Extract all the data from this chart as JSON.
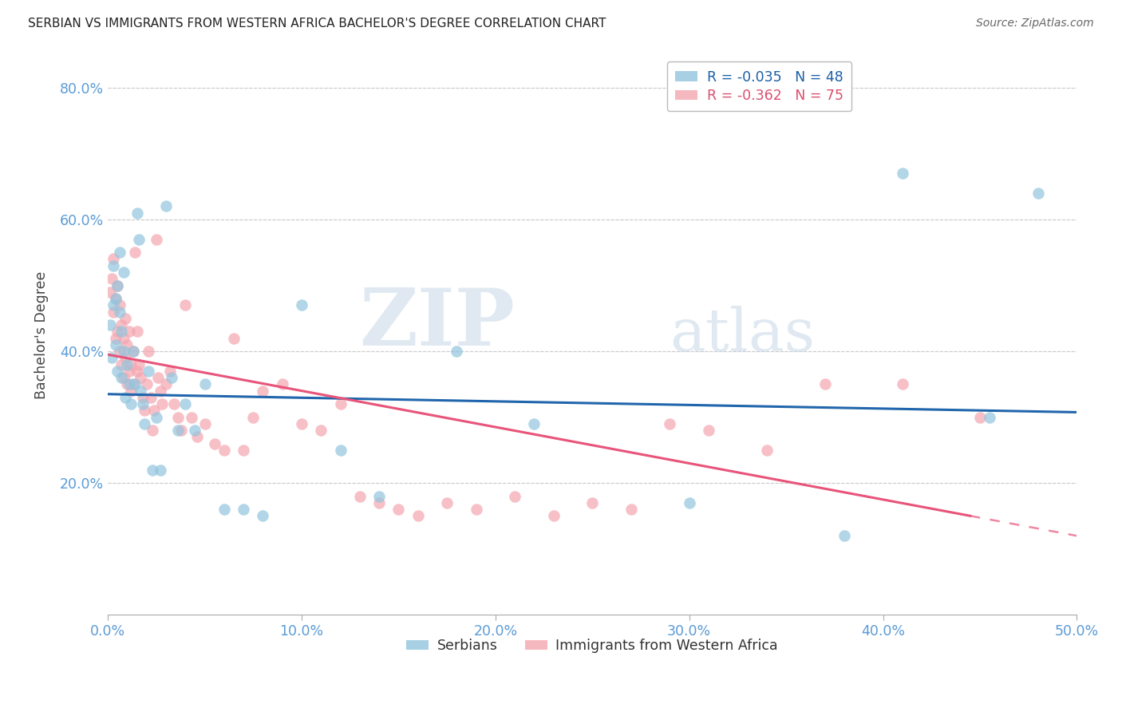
{
  "title": "SERBIAN VS IMMIGRANTS FROM WESTERN AFRICA BACHELOR'S DEGREE CORRELATION CHART",
  "source": "Source: ZipAtlas.com",
  "tick_color": "#5b9bd5",
  "ylabel": "Bachelor's Degree",
  "xlim": [
    0.0,
    0.5
  ],
  "ylim": [
    0.0,
    0.85
  ],
  "xticks": [
    0.0,
    0.1,
    0.2,
    0.3,
    0.4,
    0.5
  ],
  "yticks": [
    0.2,
    0.4,
    0.6,
    0.8
  ],
  "legend_r1": "R = -0.035",
  "legend_n1": "N = 48",
  "legend_r2": "R = -0.362",
  "legend_n2": "N = 75",
  "blue_color": "#92c5de",
  "pink_color": "#f4a6b0",
  "trendline_blue": "#2166ac",
  "trendline_pink": "#e8547a",
  "watermark_zip": "ZIP",
  "watermark_atlas": "atlas",
  "serbian_x": [
    0.001,
    0.002,
    0.003,
    0.003,
    0.004,
    0.004,
    0.005,
    0.005,
    0.006,
    0.006,
    0.007,
    0.007,
    0.008,
    0.008,
    0.009,
    0.01,
    0.011,
    0.012,
    0.013,
    0.014,
    0.015,
    0.016,
    0.017,
    0.018,
    0.019,
    0.021,
    0.023,
    0.025,
    0.027,
    0.03,
    0.033,
    0.036,
    0.04,
    0.045,
    0.05,
    0.06,
    0.07,
    0.08,
    0.1,
    0.12,
    0.14,
    0.18,
    0.22,
    0.3,
    0.38,
    0.41,
    0.455,
    0.48
  ],
  "serbian_y": [
    0.44,
    0.39,
    0.47,
    0.53,
    0.41,
    0.48,
    0.5,
    0.37,
    0.46,
    0.55,
    0.43,
    0.36,
    0.4,
    0.52,
    0.33,
    0.38,
    0.35,
    0.32,
    0.4,
    0.35,
    0.61,
    0.57,
    0.34,
    0.32,
    0.29,
    0.37,
    0.22,
    0.3,
    0.22,
    0.62,
    0.36,
    0.28,
    0.32,
    0.28,
    0.35,
    0.16,
    0.16,
    0.15,
    0.47,
    0.25,
    0.18,
    0.4,
    0.29,
    0.17,
    0.12,
    0.67,
    0.3,
    0.64
  ],
  "western_africa_x": [
    0.001,
    0.002,
    0.003,
    0.003,
    0.004,
    0.004,
    0.005,
    0.005,
    0.006,
    0.006,
    0.007,
    0.007,
    0.008,
    0.008,
    0.009,
    0.009,
    0.01,
    0.01,
    0.011,
    0.011,
    0.012,
    0.012,
    0.013,
    0.013,
    0.014,
    0.015,
    0.015,
    0.016,
    0.017,
    0.018,
    0.019,
    0.02,
    0.021,
    0.022,
    0.023,
    0.024,
    0.025,
    0.026,
    0.027,
    0.028,
    0.03,
    0.032,
    0.034,
    0.036,
    0.038,
    0.04,
    0.043,
    0.046,
    0.05,
    0.055,
    0.06,
    0.065,
    0.07,
    0.075,
    0.08,
    0.09,
    0.1,
    0.11,
    0.12,
    0.13,
    0.14,
    0.15,
    0.16,
    0.175,
    0.19,
    0.21,
    0.23,
    0.25,
    0.27,
    0.29,
    0.31,
    0.34,
    0.37,
    0.41,
    0.45
  ],
  "western_africa_y": [
    0.49,
    0.51,
    0.46,
    0.54,
    0.42,
    0.48,
    0.43,
    0.5,
    0.4,
    0.47,
    0.44,
    0.38,
    0.42,
    0.36,
    0.45,
    0.39,
    0.41,
    0.35,
    0.37,
    0.43,
    0.34,
    0.38,
    0.4,
    0.35,
    0.55,
    0.37,
    0.43,
    0.38,
    0.36,
    0.33,
    0.31,
    0.35,
    0.4,
    0.33,
    0.28,
    0.31,
    0.57,
    0.36,
    0.34,
    0.32,
    0.35,
    0.37,
    0.32,
    0.3,
    0.28,
    0.47,
    0.3,
    0.27,
    0.29,
    0.26,
    0.25,
    0.42,
    0.25,
    0.3,
    0.34,
    0.35,
    0.29,
    0.28,
    0.32,
    0.18,
    0.17,
    0.16,
    0.15,
    0.17,
    0.16,
    0.18,
    0.15,
    0.17,
    0.16,
    0.29,
    0.28,
    0.25,
    0.35,
    0.35,
    0.3
  ]
}
